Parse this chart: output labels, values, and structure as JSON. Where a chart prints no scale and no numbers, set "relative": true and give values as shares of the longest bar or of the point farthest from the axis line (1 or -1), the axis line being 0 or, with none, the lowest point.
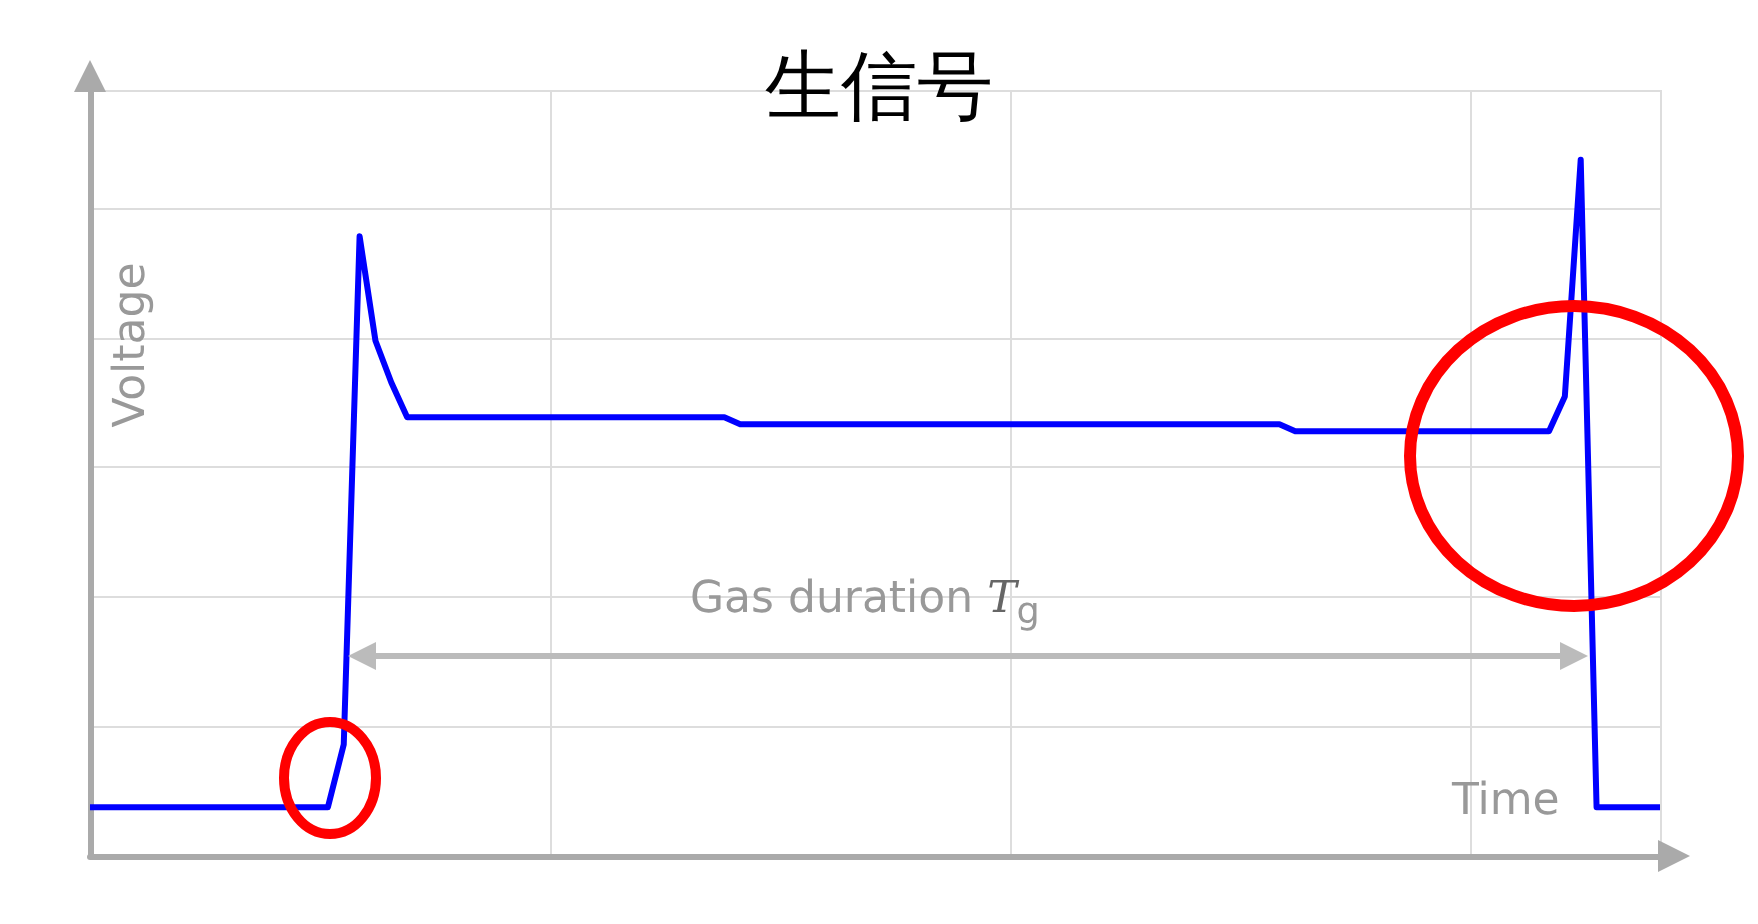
{
  "chart_data": {
    "type": "line",
    "title": "生信号",
    "xlabel": "Time",
    "ylabel": "Voltage",
    "relative": true,
    "grid": true,
    "annotations": [
      "Gas duration T$_{g}$"
    ],
    "categories": [
      null,
      null,
      null,
      null,
      null,
      null,
      null,
      null,
      null,
      null,
      null,
      null,
      null,
      null,
      null,
      null,
      null,
      null,
      null,
      null,
      null,
      null,
      null,
      null,
      null,
      null,
      null,
      null,
      null,
      null,
      null,
      null,
      null,
      null,
      null,
      null,
      null,
      null,
      null,
      null,
      null,
      null,
      null,
      null,
      null,
      null,
      null,
      null,
      null,
      null,
      null,
      null,
      null,
      null,
      null,
      null,
      null,
      null,
      null,
      null,
      null,
      null,
      null,
      null,
      null,
      null,
      null,
      null,
      null,
      null,
      null,
      null,
      null,
      null,
      null,
      null,
      null,
      null,
      null,
      null,
      null,
      null,
      null,
      null,
      null,
      null,
      null,
      null,
      null,
      null,
      null,
      null,
      null,
      null,
      null,
      null,
      null,
      null,
      null,
      null
    ],
    "series": [
      {
        "color": "#0000ff",
        "values": [
          0.07,
          0.07,
          0.07,
          0.07,
          0.07,
          0.07,
          0.07,
          0.07,
          0.07,
          0.07,
          0.07,
          0.07,
          0.07,
          0.07,
          0.07,
          0.07,
          0.16,
          0.89,
          0.74,
          0.68,
          0.63,
          0.63,
          0.63,
          0.63,
          0.63,
          0.63,
          0.63,
          0.63,
          0.63,
          0.63,
          0.63,
          0.63,
          0.63,
          0.63,
          0.63,
          0.63,
          0.63,
          0.63,
          0.63,
          0.63,
          0.63,
          0.62,
          0.62,
          0.62,
          0.62,
          0.62,
          0.62,
          0.62,
          0.62,
          0.62,
          0.62,
          0.62,
          0.62,
          0.62,
          0.62,
          0.62,
          0.62,
          0.62,
          0.62,
          0.62,
          0.62,
          0.62,
          0.62,
          0.62,
          0.62,
          0.62,
          0.62,
          0.62,
          0.62,
          0.62,
          0.62,
          0.62,
          0.62,
          0.62,
          0.62,
          0.62,
          0.61,
          0.61,
          0.61,
          0.61,
          0.61,
          0.61,
          0.61,
          0.61,
          0.61,
          0.61,
          0.61,
          0.61,
          0.61,
          0.61,
          0.61,
          0.61,
          0.61,
          0.66,
          1,
          0.07,
          0.07,
          0.07,
          0.07,
          0.07
        ]
      }
    ]
  }
}
